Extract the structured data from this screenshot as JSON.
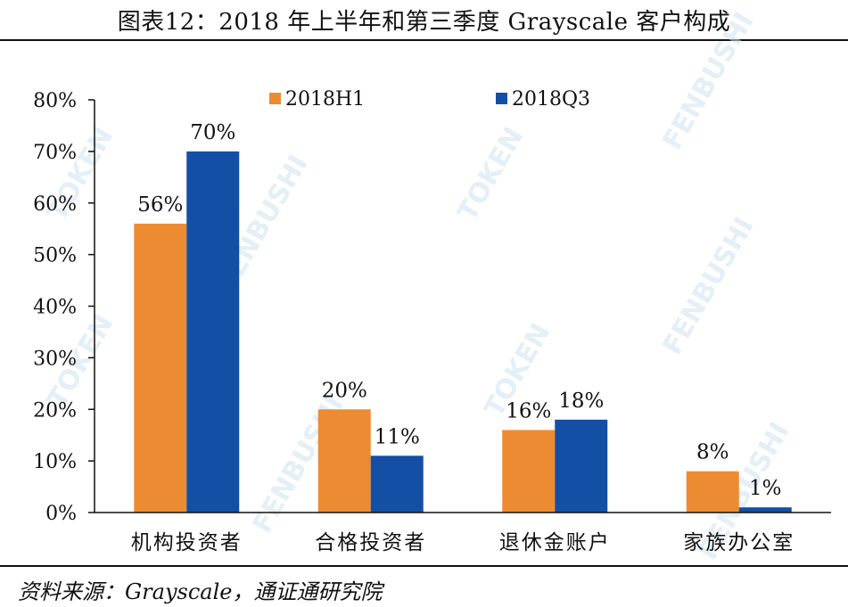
{
  "title": "图表12：2018 年上半年和第三季度 Grayscale 客户构成",
  "source": "资料来源：Grayscale，通证通研究院",
  "colors": {
    "s1": "#ED8B33",
    "s2": "#1350A5",
    "axis": "#111111"
  },
  "chart_data": {
    "type": "bar",
    "categories": [
      "机构投资者",
      "合格投资者",
      "退休金账户",
      "家族办公室"
    ],
    "series": [
      {
        "name": "2018H1",
        "values": [
          56,
          20,
          16,
          8
        ],
        "labels": [
          "56%",
          "20%",
          "16%",
          "8%"
        ]
      },
      {
        "name": "2018Q3",
        "values": [
          70,
          11,
          18,
          1
        ],
        "labels": [
          "70%",
          "11%",
          "18%",
          "1%"
        ]
      }
    ],
    "yticks": [
      "0%",
      "10%",
      "20%",
      "30%",
      "40%",
      "50%",
      "60%",
      "70%",
      "80%"
    ],
    "ylim": [
      0,
      80
    ],
    "legend": "top",
    "grid": false
  }
}
